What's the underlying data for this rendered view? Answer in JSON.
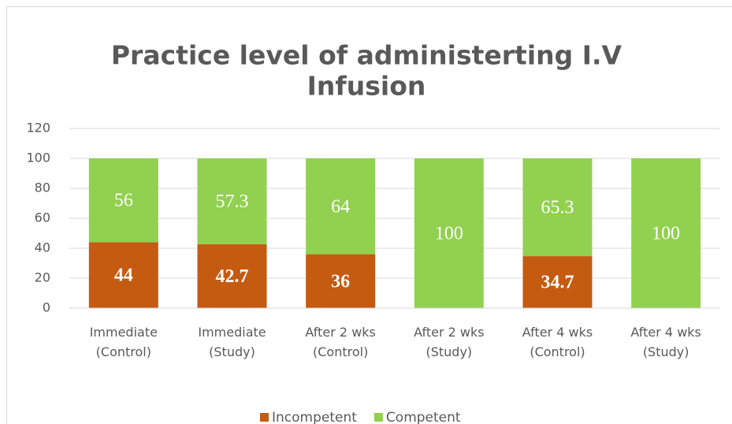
{
  "chart_data": {
    "type": "stacked-bar",
    "title": [
      "Practice level of administerting I.V",
      "Infusion"
    ],
    "categories": [
      "Immediate (Control)",
      "Immediate (Study)",
      "After 2 wks (Control)",
      "After 2 wks (Study)",
      "After 4 wks (Control)",
      "After 4 wks (Study)"
    ],
    "series": [
      {
        "name": "Incompetent",
        "color": "#c55a11",
        "values": [
          44,
          42.7,
          36,
          0,
          34.7,
          0
        ]
      },
      {
        "name": "Competent",
        "color": "#92d050",
        "values": [
          56,
          57.3,
          64,
          100,
          65.3,
          100
        ]
      }
    ],
    "ylim": [
      0,
      120
    ],
    "yticks": [
      0,
      20,
      40,
      60,
      80,
      100,
      120
    ],
    "grid": true,
    "legend": "bottom"
  }
}
